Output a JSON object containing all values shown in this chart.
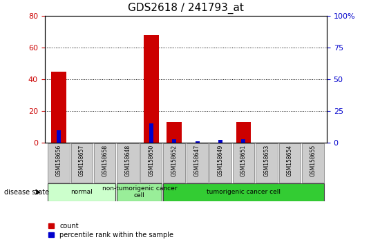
{
  "title": "GDS2618 / 241793_at",
  "samples": [
    "GSM158656",
    "GSM158657",
    "GSM158658",
    "GSM158648",
    "GSM158650",
    "GSM158652",
    "GSM158647",
    "GSM158649",
    "GSM158651",
    "GSM158653",
    "GSM158654",
    "GSM158655"
  ],
  "count_values": [
    45,
    0,
    0,
    0,
    68,
    13,
    0,
    0,
    13,
    0,
    0,
    0
  ],
  "percentile_values": [
    10,
    0,
    0,
    0,
    15,
    3,
    1,
    2,
    3,
    0,
    0,
    0
  ],
  "ylim_left": [
    0,
    80
  ],
  "ylim_right": [
    0,
    100
  ],
  "yticks_left": [
    0,
    20,
    40,
    60,
    80
  ],
  "yticks_right": [
    0,
    25,
    50,
    75,
    100
  ],
  "yticklabels_right": [
    "0",
    "25",
    "50",
    "75",
    "100%"
  ],
  "groups": [
    {
      "label": "normal",
      "start": 0,
      "end": 3,
      "color": "#ccffcc"
    },
    {
      "label": "non-tumorigenic cancer\ncell",
      "start": 3,
      "end": 5,
      "color": "#99ee99"
    },
    {
      "label": "tumorigenic cancer cell",
      "start": 5,
      "end": 12,
      "color": "#33cc33"
    }
  ],
  "count_color": "#cc0000",
  "percentile_color": "#0000cc",
  "red_bar_width": 0.65,
  "blue_bar_width": 0.18,
  "background_color": "#ffffff",
  "tick_label_bg": "#cccccc",
  "disease_state_label": "disease state",
  "legend_count": "count",
  "legend_percentile": "percentile rank within the sample",
  "title_fontsize": 11,
  "tick_fontsize": 8
}
